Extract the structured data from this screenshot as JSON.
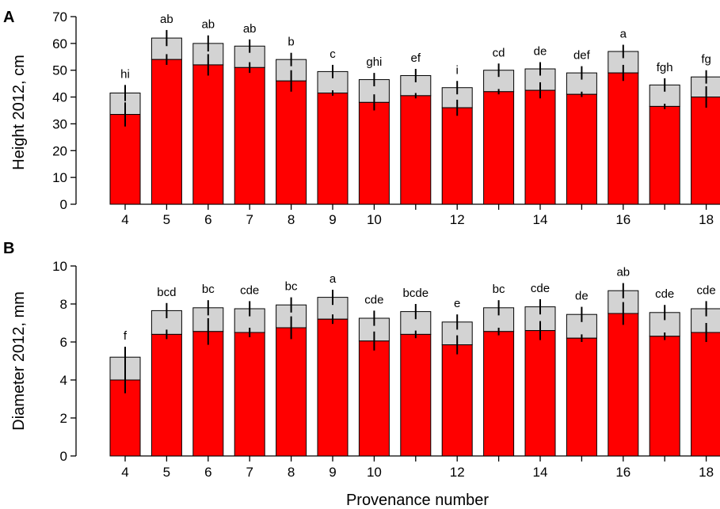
{
  "colors": {
    "lower_bar": "#ff0000",
    "upper_bar": "#d3d3d3",
    "bar_outline": "#000000"
  },
  "chart_data": [
    {
      "type": "bar",
      "panel": "A",
      "ylabel": "Height 2012, cm",
      "xlabel": "",
      "ylim": [
        0,
        70
      ],
      "yticks": [
        0,
        10,
        20,
        30,
        40,
        50,
        60,
        70
      ],
      "categories": [
        "4",
        "5",
        "6",
        "7",
        "8",
        "9",
        "10",
        "11",
        "12",
        "13",
        "14",
        "15",
        "16",
        "17",
        "18"
      ],
      "x_tick_labels": [
        "4",
        "5",
        "6",
        "7",
        "8",
        "9",
        "10",
        "",
        "12",
        "",
        "14",
        "",
        "16",
        "",
        "18"
      ],
      "series": [
        {
          "values": [
            33.5,
            54,
            52,
            51,
            46,
            41.5,
            38,
            40.5,
            36,
            42,
            42.5,
            41,
            49,
            36.5,
            40
          ],
          "errors": [
            4.5,
            2,
            4,
            2,
            4,
            1,
            3,
            1,
            3,
            1,
            3,
            1,
            3,
            1,
            4
          ]
        },
        {
          "totals": [
            41.5,
            62,
            60,
            59,
            54,
            49.5,
            46.5,
            48,
            43.5,
            50,
            50.5,
            49,
            57,
            44.5,
            47.5
          ],
          "errors": [
            3,
            3,
            3,
            2.5,
            2.5,
            2.5,
            2.5,
            2.5,
            2.5,
            2.5,
            2.5,
            2.5,
            2.5,
            2.5,
            2.5
          ]
        }
      ],
      "annotations": [
        "hi",
        "ab",
        "ab",
        "ab",
        "b",
        "c",
        "ghi",
        "ef",
        "i",
        "cd",
        "de",
        "def",
        "a",
        "fgh",
        "fg"
      ]
    },
    {
      "type": "bar",
      "panel": "B",
      "ylabel": "Diameter 2012, mm",
      "xlabel": "Provenance number",
      "ylim": [
        0,
        10
      ],
      "yticks": [
        0,
        2,
        4,
        6,
        8,
        10
      ],
      "categories": [
        "4",
        "5",
        "6",
        "7",
        "8",
        "9",
        "10",
        "11",
        "12",
        "13",
        "14",
        "15",
        "16",
        "17",
        "18"
      ],
      "x_tick_labels": [
        "4",
        "5",
        "6",
        "7",
        "8",
        "9",
        "10",
        "",
        "12",
        "",
        "14",
        "",
        "16",
        "",
        "18"
      ],
      "series": [
        {
          "values": [
            4.0,
            6.4,
            6.55,
            6.5,
            6.75,
            7.2,
            6.05,
            6.4,
            5.85,
            6.55,
            6.6,
            6.2,
            7.5,
            6.3,
            6.5
          ],
          "errors": [
            0.7,
            0.25,
            0.7,
            0.25,
            0.6,
            0.25,
            0.5,
            0.2,
            0.5,
            0.2,
            0.5,
            0.2,
            0.6,
            0.2,
            0.5
          ]
        },
        {
          "totals": [
            5.2,
            7.65,
            7.8,
            7.75,
            7.95,
            8.35,
            7.25,
            7.6,
            7.05,
            7.8,
            7.85,
            7.45,
            8.7,
            7.55,
            7.75
          ],
          "errors": [
            0.55,
            0.4,
            0.4,
            0.4,
            0.4,
            0.4,
            0.4,
            0.4,
            0.4,
            0.4,
            0.4,
            0.4,
            0.4,
            0.4,
            0.4
          ]
        }
      ],
      "annotations": [
        "f",
        "bcd",
        "bc",
        "cde",
        "bc",
        "a",
        "cde",
        "bcde",
        "e",
        "bc",
        "cde",
        "de",
        "ab",
        "cde",
        "cde"
      ]
    }
  ]
}
